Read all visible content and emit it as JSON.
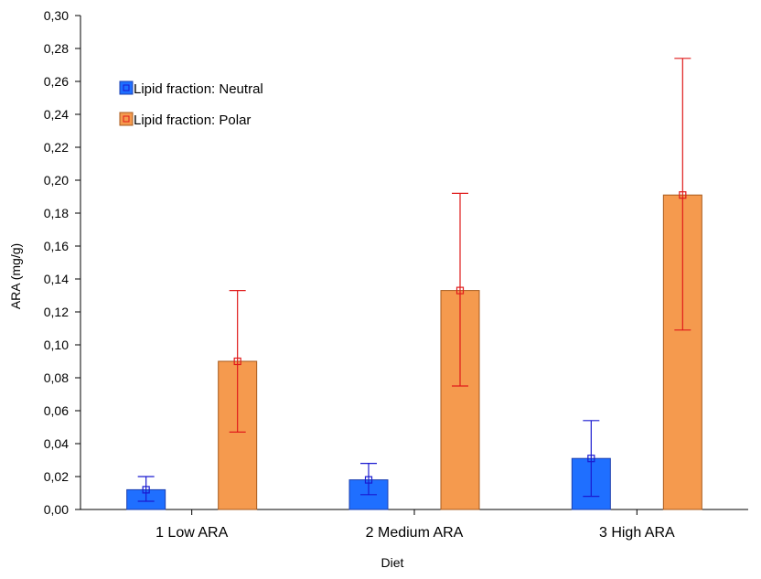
{
  "chart_data": {
    "type": "bar",
    "title": "",
    "xlabel": "Diet",
    "ylabel": "ARA (mg/g)",
    "ylim": [
      0,
      0.3
    ],
    "yticks": [
      0.0,
      0.02,
      0.04,
      0.06,
      0.08,
      0.1,
      0.12,
      0.14,
      0.16,
      0.18,
      0.2,
      0.22,
      0.24,
      0.26,
      0.28,
      0.3
    ],
    "ytick_labels": [
      "0,00",
      "0,02",
      "0,04",
      "0,06",
      "0,08",
      "0,10",
      "0,12",
      "0,14",
      "0,16",
      "0,18",
      "0,20",
      "0,22",
      "0,24",
      "0,26",
      "0,28",
      "0,30"
    ],
    "categories": [
      "1 Low ARA",
      "2 Medium ARA",
      "3 High ARA"
    ],
    "grid": false,
    "legend_position": "top-left",
    "series": [
      {
        "name": "Lipid fraction: Neutral",
        "color": "#1f6fff",
        "error_color": "#1a1ad0",
        "values": [
          0.012,
          0.018,
          0.031
        ],
        "error_low": [
          0.005,
          0.009,
          0.008
        ],
        "error_high": [
          0.02,
          0.028,
          0.054
        ]
      },
      {
        "name": "Lipid fraction: Polar",
        "color": "#f59a4e",
        "error_color": "#e01b1b",
        "values": [
          0.09,
          0.133,
          0.191
        ],
        "error_low": [
          0.047,
          0.075,
          0.109
        ],
        "error_high": [
          0.133,
          0.192,
          0.274
        ]
      }
    ]
  }
}
